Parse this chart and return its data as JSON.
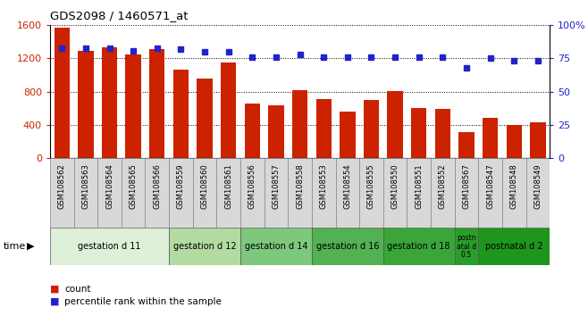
{
  "title": "GDS2098 / 1460571_at",
  "samples": [
    "GSM108562",
    "GSM108563",
    "GSM108564",
    "GSM108565",
    "GSM108566",
    "GSM108559",
    "GSM108560",
    "GSM108561",
    "GSM108556",
    "GSM108557",
    "GSM108558",
    "GSM108553",
    "GSM108554",
    "GSM108555",
    "GSM108550",
    "GSM108551",
    "GSM108552",
    "GSM108567",
    "GSM108547",
    "GSM108548",
    "GSM108549"
  ],
  "counts": [
    1570,
    1290,
    1330,
    1250,
    1310,
    1070,
    960,
    1150,
    660,
    640,
    820,
    710,
    560,
    700,
    810,
    600,
    590,
    310,
    480,
    400,
    430
  ],
  "percentile": [
    83,
    83,
    83,
    81,
    83,
    82,
    80,
    80,
    76,
    76,
    78,
    76,
    76,
    76,
    76,
    76,
    76,
    68,
    75,
    73,
    73
  ],
  "groups": [
    {
      "label": "gestation d 11",
      "start": 0,
      "end": 5,
      "color": "#dff0d8"
    },
    {
      "label": "gestation d 12",
      "start": 5,
      "end": 8,
      "color": "#b2dba1"
    },
    {
      "label": "gestation d 14",
      "start": 8,
      "end": 11,
      "color": "#7dc87d"
    },
    {
      "label": "gestation d 16",
      "start": 11,
      "end": 14,
      "color": "#52b152"
    },
    {
      "label": "gestation d 18",
      "start": 14,
      "end": 17,
      "color": "#3aa63a"
    },
    {
      "label": "postn\natal d\n0.5",
      "start": 17,
      "end": 18,
      "color": "#2a9e2a"
    },
    {
      "label": "postnatal d 2",
      "start": 18,
      "end": 21,
      "color": "#1e961e"
    }
  ],
  "bar_color": "#cc2200",
  "dot_color": "#2222cc",
  "ylim_left": [
    0,
    1600
  ],
  "ylim_right": [
    0,
    100
  ],
  "yticks_left": [
    0,
    400,
    800,
    1200,
    1600
  ],
  "yticks_right": [
    0,
    25,
    50,
    75,
    100
  ],
  "ytick_right_labels": [
    "0",
    "25",
    "50",
    "75",
    "100%"
  ],
  "legend_count_label": "count",
  "legend_pct_label": "percentile rank within the sample",
  "time_label": "time",
  "sample_box_color": "#d8d8d8",
  "sample_box_edge": "#888888"
}
